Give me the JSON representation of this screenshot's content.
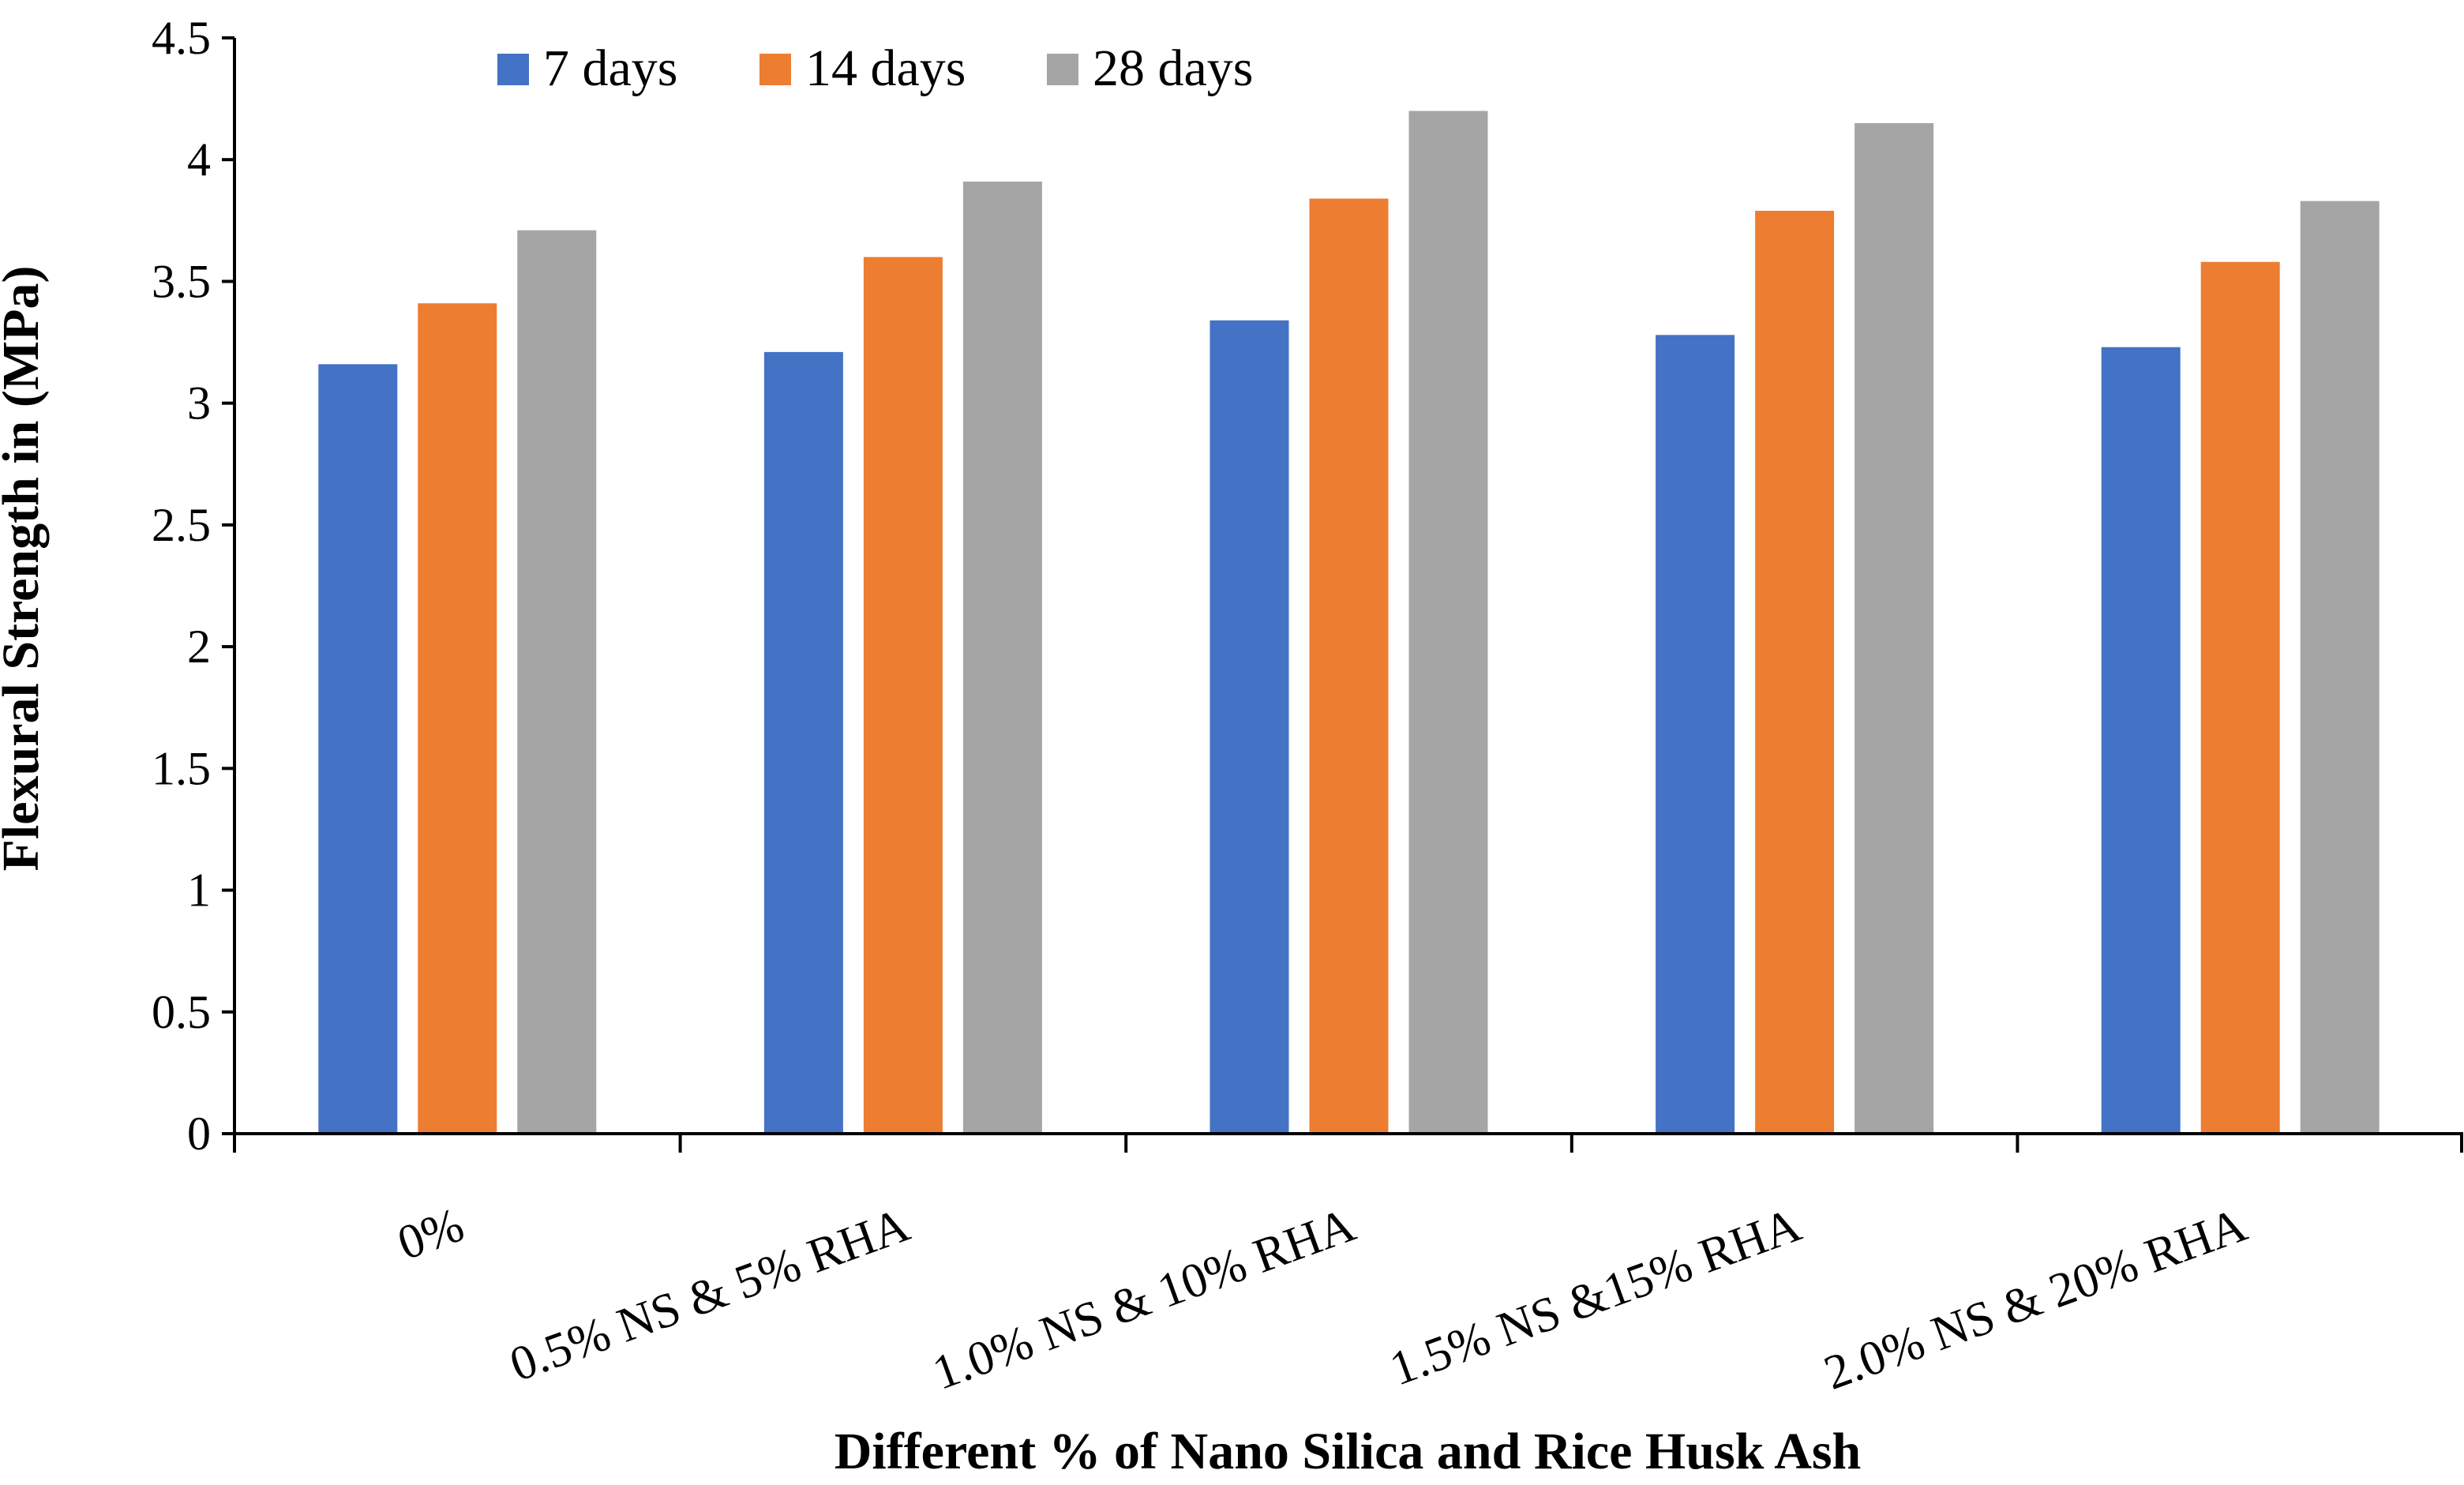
{
  "chart_data": {
    "type": "bar",
    "title": "",
    "xlabel": "Different % of Nano Silica and Rice Husk Ash",
    "ylabel": "Flexural Strength in (MPa)",
    "ylim": [
      0,
      4.5
    ],
    "yticks": [
      0,
      0.5,
      1,
      1.5,
      2,
      2.5,
      3,
      3.5,
      4,
      4.5
    ],
    "ytick_labels": [
      "0",
      "0.5",
      "1",
      "1.5",
      "2",
      "2.5",
      "3",
      "3.5",
      "4",
      "4.5"
    ],
    "grid": false,
    "legend_position": "top",
    "categories": [
      "0%",
      "0.5% NS & 5% RHA",
      "1.0% NS & 10% RHA",
      "1.5% NS &15% RHA",
      "2.0% NS & 20% RHA"
    ],
    "series": [
      {
        "name": "7 days",
        "color": "#4472C4",
        "values": [
          3.16,
          3.21,
          3.34,
          3.28,
          3.23
        ]
      },
      {
        "name": "14 days",
        "color": "#ED7D31",
        "values": [
          3.41,
          3.6,
          3.84,
          3.79,
          3.58
        ]
      },
      {
        "name": "28 days",
        "color": "#A5A5A5",
        "values": [
          3.71,
          3.91,
          4.2,
          4.15,
          3.83
        ]
      }
    ]
  }
}
